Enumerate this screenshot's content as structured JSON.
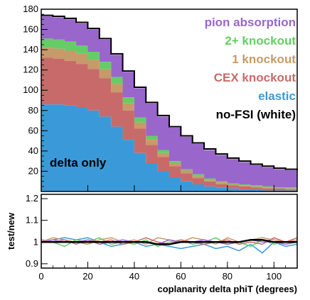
{
  "chart_data": [
    {
      "type": "area",
      "subtype": "stacked-step-histogram",
      "annotation": "delta only",
      "xlim": [
        0,
        110
      ],
      "ylim": [
        0,
        180
      ],
      "yticks": [
        20,
        40,
        60,
        80,
        100,
        120,
        140,
        160,
        180
      ],
      "x": [
        0,
        5,
        10,
        15,
        20,
        25,
        30,
        35,
        40,
        45,
        50,
        55,
        60,
        65,
        70,
        75,
        80,
        85,
        90,
        95,
        100,
        105,
        110
      ],
      "series": [
        {
          "name": "elastic",
          "color": "#3a9ad9",
          "values": [
            86,
            86,
            85,
            83,
            80,
            74,
            64,
            51,
            38,
            28,
            20,
            14,
            10,
            7,
            5,
            4,
            3,
            2,
            2,
            1,
            1,
            1,
            1
          ]
        },
        {
          "name": "CEX knockout",
          "color": "#c96a6a",
          "values": [
            132,
            131,
            129,
            126,
            121,
            112,
            98,
            80,
            62,
            46,
            34,
            25,
            18,
            13,
            10,
            7,
            6,
            5,
            4,
            3,
            3,
            2,
            2
          ]
        },
        {
          "name": "1 knockout",
          "color": "#c79a6a",
          "values": [
            142,
            141,
            139,
            136,
            130,
            121,
            106,
            87,
            68,
            51,
            38,
            28,
            21,
            15,
            11,
            9,
            7,
            6,
            5,
            4,
            3,
            3,
            3
          ]
        },
        {
          "name": "2+ knockout",
          "color": "#66cc66",
          "values": [
            151,
            150,
            148,
            144,
            138,
            128,
            113,
            93,
            73,
            55,
            41,
            30,
            22,
            17,
            13,
            10,
            8,
            7,
            6,
            5,
            4,
            4,
            3
          ]
        },
        {
          "name": "pion absorption",
          "color": "#9966cc",
          "values": [
            173,
            172,
            170,
            166,
            160,
            150,
            135,
            118,
            102,
            87,
            74,
            63,
            54,
            47,
            41,
            36,
            32,
            29,
            26,
            24,
            22,
            21,
            20
          ]
        }
      ],
      "total_outline": {
        "name": "no-FSI (white)",
        "color": "#000000",
        "values": [
          174,
          173,
          171,
          167,
          161,
          151,
          136,
          119,
          103,
          88,
          75,
          64,
          55,
          48,
          42,
          37,
          33,
          30,
          27,
          25,
          23,
          22,
          21
        ]
      }
    },
    {
      "type": "line",
      "ylabel": "test/new",
      "xlabel": "coplanarity delta phiT (degrees)",
      "xlim": [
        0,
        110
      ],
      "ylim": [
        0.88,
        1.22
      ],
      "yticks": [
        0.9,
        1,
        1.1,
        1.2
      ],
      "ytick_labels": [
        "0.9",
        "1",
        "1.1",
        "1.2"
      ],
      "xticks": [
        0,
        20,
        40,
        60,
        80,
        100
      ],
      "x": [
        0,
        5,
        10,
        15,
        20,
        25,
        30,
        35,
        40,
        45,
        50,
        55,
        60,
        65,
        70,
        75,
        80,
        85,
        90,
        95,
        100,
        105,
        110
      ],
      "series": [
        {
          "color": "#3a9ad9",
          "values": [
            1.0,
            1.01,
            1.02,
            1.01,
            1.02,
            1.0,
            0.98,
            0.99,
            1.0,
            0.98,
            0.99,
            0.98,
            0.97,
            0.98,
            0.99,
            0.97,
            0.98,
            0.96,
            0.99,
            0.95,
            1.0,
            0.98,
            0.99
          ]
        },
        {
          "color": "#66cc66",
          "values": [
            1.01,
            1.0,
            0.98,
            1.01,
            1.0,
            1.02,
            0.99,
            1.0,
            0.99,
            1.01,
            0.98,
            1.0,
            1.01,
            0.99,
            1.0,
            1.02,
            0.99,
            1.0,
            0.98,
            1.01,
            0.99,
            1.0,
            1.0
          ]
        },
        {
          "color": "#c79a6a",
          "values": [
            1.0,
            1.02,
            1.01,
            1.0,
            0.99,
            1.01,
            1.02,
            1.0,
            1.01,
            0.99,
            1.02,
            1.01,
            1.0,
            1.02,
            1.01,
            0.99,
            1.02,
            1.0,
            1.01,
            1.02,
            1.01,
            1.0,
            1.01
          ]
        },
        {
          "color": "#c96a6a",
          "values": [
            1.01,
            1.0,
            1.01,
            0.99,
            1.01,
            1.0,
            1.01,
            0.99,
            1.0,
            1.02,
            1.0,
            0.99,
            1.01,
            1.0,
            0.99,
            1.0,
            1.01,
            0.99,
            1.0,
            0.99,
            1.02,
            1.0,
            1.02
          ]
        },
        {
          "color": "#9966cc",
          "values": [
            1.0,
            1.01,
            1.0,
            1.0,
            1.01,
            0.99,
            1.0,
            1.01,
            1.0,
            1.0,
            0.99,
            1.01,
            1.0,
            1.0,
            1.01,
            1.0,
            0.99,
            1.0,
            1.01,
            1.0,
            1.0,
            0.99,
            1.0
          ]
        },
        {
          "color": "#000000",
          "values": [
            1.0,
            1.0,
            1.0,
            1.0,
            1.0,
            1.0,
            1.0,
            1.0,
            1.0,
            1.0,
            0.99,
            0.99,
            1.0,
            1.0,
            1.0,
            1.0,
            1.0,
            1.0,
            1.01,
            1.01,
            1.0,
            1.0,
            1.0
          ]
        }
      ]
    }
  ]
}
